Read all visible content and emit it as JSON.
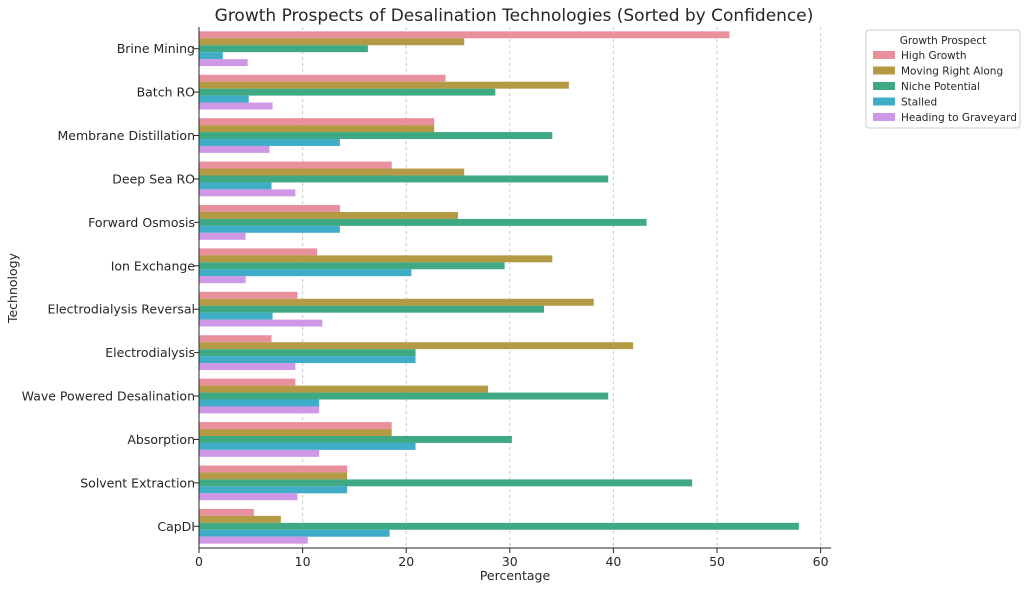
{
  "chart_data": {
    "type": "bar",
    "orientation": "horizontal",
    "title": "Growth Prospects of Desalination Technologies (Sorted by Confidence)",
    "xlabel": "Percentage",
    "ylabel": "Technology",
    "xlim": [
      0,
      61
    ],
    "xticks": [
      0,
      10,
      20,
      30,
      40,
      50,
      60
    ],
    "grid": "x dashed",
    "legend_title": "Growth Prospect",
    "legend_position": "outside top-right",
    "categories": [
      "Brine Mining",
      "Batch RO",
      "Membrane Distillation",
      "Deep Sea RO",
      "Forward Osmosis",
      "Ion Exchange",
      "Electrodialysis Reversal",
      "Electrodialysis",
      "Wave Powered Desalination",
      "Absorption",
      "Solvent Extraction",
      "CapDI"
    ],
    "series": [
      {
        "name": "High Growth",
        "color": "#e8909c",
        "values": [
          51.2,
          23.8,
          22.7,
          18.6,
          13.6,
          11.4,
          9.5,
          7.0,
          9.3,
          18.6,
          14.3,
          5.3
        ]
      },
      {
        "name": "Moving Right Along",
        "color": "#b49a45",
        "values": [
          25.6,
          35.7,
          22.7,
          25.6,
          25.0,
          34.1,
          38.1,
          41.9,
          27.9,
          18.6,
          14.3,
          7.9
        ]
      },
      {
        "name": "Niche Potential",
        "color": "#3ea982",
        "values": [
          16.3,
          28.6,
          34.1,
          39.5,
          43.2,
          29.5,
          33.3,
          20.9,
          39.5,
          30.2,
          47.6,
          57.9
        ]
      },
      {
        "name": "Stalled",
        "color": "#3fadc7",
        "values": [
          2.3,
          4.8,
          13.6,
          7.0,
          13.6,
          20.5,
          7.1,
          20.9,
          11.6,
          20.9,
          14.3,
          18.4
        ]
      },
      {
        "name": "Heading to Graveyard",
        "color": "#cf98e6",
        "values": [
          4.7,
          7.1,
          6.8,
          9.3,
          4.5,
          4.5,
          11.9,
          9.3,
          11.6,
          11.6,
          9.5,
          10.5
        ]
      }
    ]
  }
}
